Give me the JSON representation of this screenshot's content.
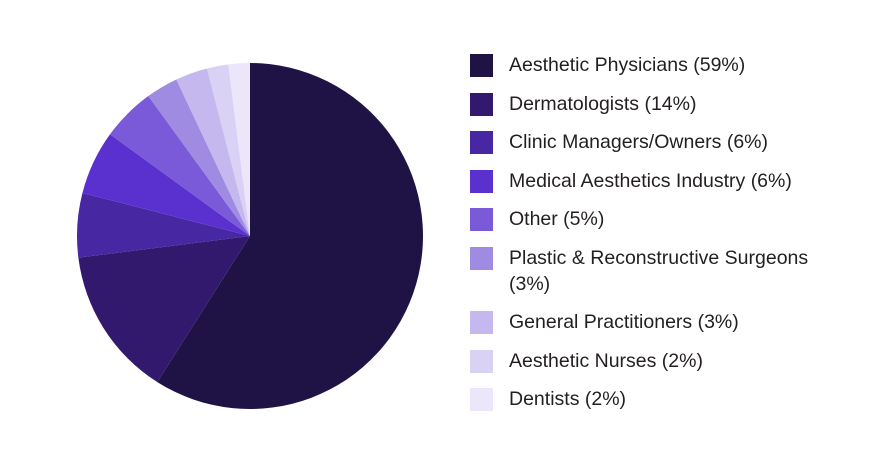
{
  "chart_data": {
    "type": "pie",
    "title": "",
    "legend_position": "right",
    "start_angle": "12 o'clock",
    "direction": "clockwise",
    "slices": [
      {
        "label": "Aesthetic Physicians (59%)",
        "value": 59,
        "color": "#1f1346"
      },
      {
        "label": "Dermatologists (14%)",
        "value": 14,
        "color": "#33196e"
      },
      {
        "label": "Clinic Managers/Owners (6%)",
        "value": 6,
        "color": "#4727a2"
      },
      {
        "label": "Medical Aesthetics Industry (6%)",
        "value": 6,
        "color": "#5a31cf"
      },
      {
        "label": "Other (5%)",
        "value": 5,
        "color": "#7a5ad8"
      },
      {
        "label": "Plastic & Reconstructive Surgeons (3%)",
        "value": 3,
        "color": "#a08be2"
      },
      {
        "label": "General Practitioners (3%)",
        "value": 3,
        "color": "#c4b8ee"
      },
      {
        "label": "Aesthetic Nurses (2%)",
        "value": 2,
        "color": "#dad2f5"
      },
      {
        "label": "Dentists (2%)",
        "value": 2,
        "color": "#ebe6fa"
      }
    ]
  }
}
